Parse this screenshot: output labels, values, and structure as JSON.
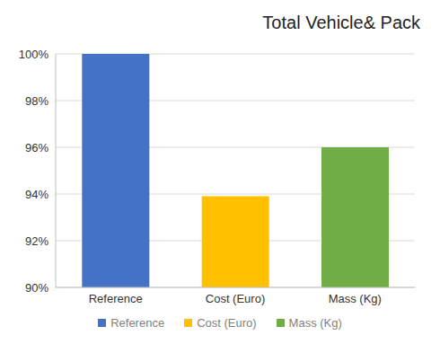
{
  "chart_data": {
    "type": "bar",
    "title": "Total Vehicle& Pack",
    "categories": [
      "Reference",
      "Cost (Euro)",
      "Mass (Kg)"
    ],
    "values": [
      100,
      93.9,
      96
    ],
    "colors": [
      "#4472c4",
      "#ffc000",
      "#70ad47"
    ],
    "ylim": [
      90,
      100
    ],
    "yticks": [
      {
        "value": 90,
        "label": "90%"
      },
      {
        "value": 92,
        "label": "92%"
      },
      {
        "value": 94,
        "label": "94%"
      },
      {
        "value": 96,
        "label": "96%"
      },
      {
        "value": 98,
        "label": "98%"
      },
      {
        "value": 100,
        "label": "100%"
      }
    ],
    "grid": true,
    "legend": "bottom"
  }
}
